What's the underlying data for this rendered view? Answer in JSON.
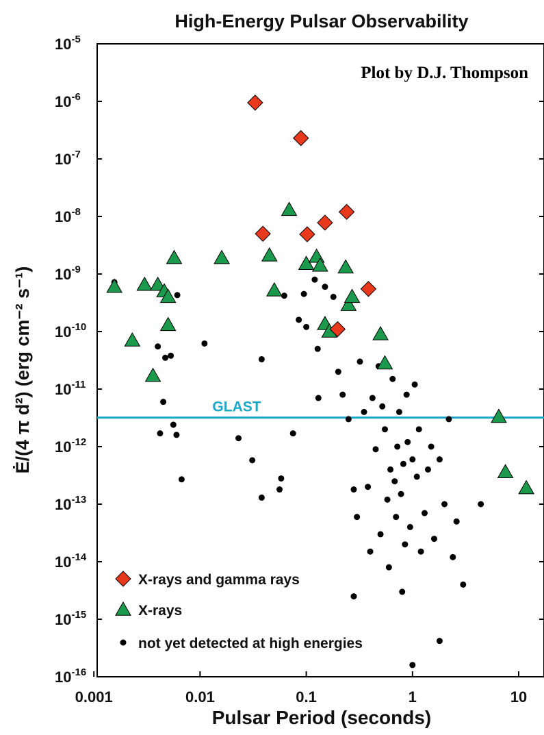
{
  "chart_data": {
    "type": "scatter",
    "title": "High-Energy Pulsar Observability",
    "credit": "Plot by D.J. Thompson",
    "xlabel": "Pulsar Period  (seconds)",
    "ylabel": "Ė/(4 π d²)  (erg cm⁻² s⁻¹)",
    "x_scale": "log",
    "y_scale": "log",
    "xlim": [
      0.001,
      15
    ],
    "ylim": [
      1e-16,
      1e-05
    ],
    "x_ticks": [
      {
        "value": 0.001,
        "label": "0.001"
      },
      {
        "value": 0.01,
        "label": "0.01"
      },
      {
        "value": 0.1,
        "label": "0.1"
      },
      {
        "value": 1,
        "label": "1"
      },
      {
        "value": 10,
        "label": "10"
      }
    ],
    "y_ticks": [
      {
        "exp": -5,
        "base": "10",
        "sup": "-5"
      },
      {
        "exp": -6,
        "base": "10",
        "sup": "-6"
      },
      {
        "exp": -7,
        "base": "10",
        "sup": "-7"
      },
      {
        "exp": -8,
        "base": "10",
        "sup": "-8"
      },
      {
        "exp": -9,
        "base": "10",
        "sup": "-9"
      },
      {
        "exp": -10,
        "base": "10",
        "sup": "-10"
      },
      {
        "exp": -11,
        "base": "10",
        "sup": "-11"
      },
      {
        "exp": -12,
        "base": "10",
        "sup": "-12"
      },
      {
        "exp": -13,
        "base": "10",
        "sup": "-13"
      },
      {
        "exp": -14,
        "base": "10",
        "sup": "-14"
      },
      {
        "exp": -15,
        "base": "10",
        "sup": "-15"
      },
      {
        "exp": -16,
        "base": "10",
        "sup": "-16"
      }
    ],
    "reference_line": {
      "label": "GLAST",
      "y": 3.2e-12,
      "color": "#1ba8c8"
    },
    "legend_position": "bottom-left",
    "colors": {
      "gamma": "#e8391c",
      "xray": "#1b9a4e",
      "undetected": "#000000",
      "outline": "#000000"
    },
    "series": [
      {
        "name": "X-rays and gamma rays",
        "marker": "diamond",
        "points": [
          [
            0.033,
            9.5e-07
          ],
          [
            0.089,
            2.3e-07
          ],
          [
            0.24,
            1.2e-08
          ],
          [
            0.15,
            7.8e-09
          ],
          [
            0.039,
            5e-09
          ],
          [
            0.102,
            4.9e-09
          ],
          [
            0.385,
            5.5e-10
          ],
          [
            0.197,
            1.1e-10
          ]
        ]
      },
      {
        "name": "X-rays",
        "marker": "triangle",
        "points": [
          [
            0.00156,
            6e-10
          ],
          [
            0.0023,
            7e-11
          ],
          [
            0.003,
            6.5e-10
          ],
          [
            0.004,
            6.5e-10
          ],
          [
            0.0046,
            5e-10
          ],
          [
            0.005,
            4e-10
          ],
          [
            0.005,
            1.3e-10
          ],
          [
            0.0036,
            1.7e-11
          ],
          [
            0.0057,
            1.9e-09
          ],
          [
            0.016,
            1.9e-09
          ],
          [
            0.045,
            2.1e-09
          ],
          [
            0.05,
            5.2e-10
          ],
          [
            0.069,
            1.3e-08
          ],
          [
            0.1,
            1.5e-09
          ],
          [
            0.125,
            2e-09
          ],
          [
            0.135,
            1.4e-09
          ],
          [
            0.15,
            1.35e-10
          ],
          [
            0.165,
            1e-10
          ],
          [
            0.235,
            1.3e-09
          ],
          [
            0.25,
            2.9e-10
          ],
          [
            0.27,
            4e-10
          ],
          [
            0.5,
            9e-11
          ],
          [
            0.55,
            2.8e-11
          ],
          [
            6.5,
            3.3e-12
          ],
          [
            7.5,
            3.6e-13
          ],
          [
            11.8,
            1.9e-13
          ]
        ]
      },
      {
        "name": "not yet detected at high energies",
        "marker": "dot",
        "points": [
          [
            0.00156,
            7.2e-10
          ],
          [
            0.004,
            5.5e-11
          ],
          [
            0.0045,
            6e-12
          ],
          [
            0.0047,
            3.5e-11
          ],
          [
            0.0053,
            3.8e-11
          ],
          [
            0.0061,
            4.3e-10
          ],
          [
            0.0042,
            1.7e-12
          ],
          [
            0.0056,
            2.4e-12
          ],
          [
            0.006,
            1.6e-12
          ],
          [
            0.0067,
            2.7e-13
          ],
          [
            0.011,
            6.2e-11
          ],
          [
            0.023,
            1.4e-12
          ],
          [
            0.031,
            5.8e-13
          ],
          [
            0.038,
            3.3e-11
          ],
          [
            0.038,
            1.3e-13
          ],
          [
            0.056,
            1.8e-13
          ],
          [
            0.058,
            2.8e-13
          ],
          [
            0.062,
            4.2e-10
          ],
          [
            0.075,
            1.7e-12
          ],
          [
            0.085,
            1.6e-10
          ],
          [
            0.1,
            1.2e-10
          ],
          [
            0.095,
            4.5e-10
          ],
          [
            0.12,
            8e-10
          ],
          [
            0.128,
            5e-11
          ],
          [
            0.15,
            6e-10
          ],
          [
            0.13,
            7e-12
          ],
          [
            0.18,
            4e-10
          ],
          [
            0.2,
            2e-11
          ],
          [
            0.22,
            8e-12
          ],
          [
            0.25,
            3e-12
          ],
          [
            0.28,
            1.8e-13
          ],
          [
            0.3,
            6e-14
          ],
          [
            0.32,
            3e-11
          ],
          [
            0.35,
            4e-12
          ],
          [
            0.38,
            2e-13
          ],
          [
            0.4,
            1.5e-14
          ],
          [
            0.42,
            7e-12
          ],
          [
            0.45,
            9e-13
          ],
          [
            0.48,
            2.5e-11
          ],
          [
            0.5,
            3e-14
          ],
          [
            0.52,
            5e-12
          ],
          [
            0.55,
            2e-12
          ],
          [
            0.58,
            1.2e-13
          ],
          [
            0.6,
            8e-15
          ],
          [
            0.62,
            4e-13
          ],
          [
            0.65,
            1.5e-11
          ],
          [
            0.68,
            2.5e-13
          ],
          [
            0.7,
            6e-14
          ],
          [
            0.72,
            1e-12
          ],
          [
            0.75,
            4e-12
          ],
          [
            0.78,
            1.5e-13
          ],
          [
            0.8,
            3e-15
          ],
          [
            0.82,
            5e-13
          ],
          [
            0.85,
            2e-14
          ],
          [
            0.88,
            8e-12
          ],
          [
            0.9,
            1.2e-12
          ],
          [
            0.95,
            4e-14
          ],
          [
            1.0,
            6e-13
          ],
          [
            1.05,
            1.2e-11
          ],
          [
            1.1,
            3e-13
          ],
          [
            1.15,
            2e-12
          ],
          [
            1.2,
            1.5e-14
          ],
          [
            1.3,
            7e-14
          ],
          [
            1.4,
            4e-13
          ],
          [
            1.5,
            1e-12
          ],
          [
            1.6,
            2.5e-14
          ],
          [
            1.8,
            6e-13
          ],
          [
            2.0,
            1e-13
          ],
          [
            2.2,
            3e-12
          ],
          [
            2.4,
            1.2e-14
          ],
          [
            2.6,
            5e-14
          ],
          [
            3.0,
            4e-15
          ],
          [
            4.4,
            1e-13
          ],
          [
            1.0,
            1.6e-16
          ],
          [
            1.8,
            4.2e-16
          ],
          [
            0.28,
            2.5e-15
          ]
        ]
      }
    ]
  }
}
